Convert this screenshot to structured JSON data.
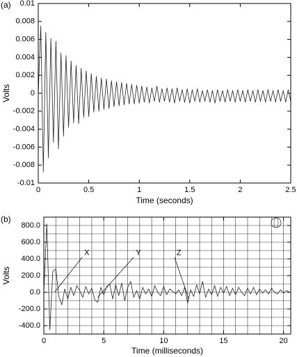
{
  "chart_data": [
    {
      "type": "line",
      "panel_label": "(a)",
      "ylabel": "Volts",
      "xlabel": "Time (seconds)",
      "xlim": [
        0,
        2.5
      ],
      "ylim": [
        -0.01,
        0.01
      ],
      "xticks": [
        0,
        0.5,
        1,
        1.5,
        2,
        2.5
      ],
      "yticks": [
        0.01,
        0.008,
        0.006,
        0.004,
        0.002,
        0,
        -0.002,
        -0.004,
        -0.006,
        -0.008,
        -0.01
      ],
      "grid": false,
      "series": [
        {
          "color": "#222222",
          "x": [
            0,
            0.025,
            0.05,
            0.075,
            0.1,
            0.125,
            0.15,
            0.175,
            0.2,
            0.225,
            0.25,
            0.275,
            0.3,
            0.325,
            0.35,
            0.375,
            0.4,
            0.425,
            0.45,
            0.475,
            0.5,
            0.525,
            0.55,
            0.575,
            0.6,
            0.625,
            0.65,
            0.675,
            0.7,
            0.725,
            0.75,
            0.775,
            0.8,
            0.825,
            0.85,
            0.875,
            0.9,
            0.925,
            0.95,
            0.975,
            1.0,
            1.025,
            1.05,
            1.075,
            1.1,
            1.125,
            1.15,
            1.175,
            1.2,
            1.225,
            1.25,
            1.275,
            1.3,
            1.325,
            1.35,
            1.375,
            1.4,
            1.425,
            1.45,
            1.475,
            1.5,
            1.525,
            1.55,
            1.575,
            1.6,
            1.625,
            1.65,
            1.675,
            1.7,
            1.725,
            1.75,
            1.775,
            1.8,
            1.825,
            1.85,
            1.875,
            1.9,
            1.925,
            1.95,
            1.975,
            2.0,
            2.025,
            2.05,
            2.075,
            2.1,
            2.125,
            2.15,
            2.175,
            2.2,
            2.225,
            2.25,
            2.275,
            2.3,
            2.325,
            2.35,
            2.375,
            2.4,
            2.425,
            2.45,
            2.475,
            2.5
          ],
          "values": [
            0,
            0.0075,
            -0.0088,
            0.0068,
            -0.0072,
            0.0061,
            -0.0055,
            0.0058,
            -0.0062,
            0.0045,
            -0.0048,
            0.0042,
            -0.0038,
            0.0036,
            -0.0033,
            0.0031,
            -0.0034,
            0.0028,
            -0.0027,
            0.0025,
            -0.0026,
            0.0022,
            -0.0021,
            0.0019,
            -0.002,
            0.0017,
            -0.0018,
            0.0016,
            -0.0017,
            0.0014,
            -0.0015,
            0.0013,
            -0.0014,
            0.0012,
            -0.0013,
            0.0011,
            -0.0012,
            0.001,
            -0.0012,
            0.0009,
            -0.0011,
            0.0008,
            -0.001,
            0.0007,
            -0.0011,
            0.0006,
            -0.0009,
            0.0008,
            -0.001,
            0.0005,
            -0.0009,
            0.0006,
            -0.001,
            0.0005,
            -0.0011,
            0.0006,
            -0.0009,
            0.0004,
            -0.001,
            0.0005,
            -0.0011,
            0.0004,
            -0.0009,
            0.0005,
            -0.001,
            0.0003,
            -0.0009,
            0.0004,
            -0.001,
            0.0003,
            -0.0011,
            0.0004,
            -0.0009,
            0.0003,
            -0.001,
            0.0004,
            -0.0009,
            0.0003,
            -0.001,
            0.0004,
            -0.0009,
            0.0003,
            -0.001,
            0.0004,
            -0.0009,
            0.0003,
            -0.001,
            0.0004,
            -0.0009,
            0.0003,
            -0.001,
            0.0004,
            -0.0009,
            0.0003,
            -0.001,
            0.0004,
            -0.0009,
            0.0003,
            -0.001,
            0.0004,
            -0.0009
          ]
        }
      ]
    },
    {
      "type": "line",
      "panel_label": "(b)",
      "ylabel": "Volts",
      "xlabel": "Time (milliseconds)",
      "xlim": [
        0,
        20.6
      ],
      "ylim": [
        -500,
        900
      ],
      "xticks": [
        0,
        5,
        10,
        15,
        20
      ],
      "yticks": [
        {
          "value": 800,
          "label": "800.0"
        },
        {
          "value": 600,
          "label": "600.0"
        },
        {
          "value": 400,
          "label": "400.0"
        },
        {
          "value": 200,
          "label": "200.0"
        },
        {
          "value": 0,
          "label": "0.0"
        },
        {
          "value": -200,
          "label": "-200.0"
        },
        {
          "value": -400,
          "label": "-400.0"
        }
      ],
      "grid": true,
      "xgrid": [
        1,
        2,
        3,
        4,
        5,
        6,
        7,
        8,
        9,
        10,
        11,
        12,
        13,
        14,
        15,
        16,
        17,
        18,
        19,
        20
      ],
      "ygrid": [
        -400,
        -300,
        -200,
        -100,
        0,
        100,
        200,
        300,
        400,
        500,
        600,
        700,
        800
      ],
      "annotations": [
        {
          "text": "X",
          "x": 3.2,
          "y": 470,
          "target_x": 0.9,
          "target_y": 0
        },
        {
          "text": "Y",
          "x": 7.5,
          "y": 470,
          "target_x": 4.5,
          "target_y": -60
        },
        {
          "text": "Z",
          "x": 10.9,
          "y": 470,
          "target_x": 12.1,
          "target_y": -80
        }
      ],
      "series": [
        {
          "color": "#222222",
          "x": [
            0,
            0.25,
            0.5,
            0.75,
            1,
            1.25,
            1.5,
            1.75,
            2,
            2.25,
            2.5,
            2.75,
            3,
            3.25,
            3.5,
            3.75,
            4,
            4.25,
            4.5,
            4.75,
            5,
            5.25,
            5.5,
            5.75,
            6,
            6.25,
            6.5,
            6.75,
            7,
            7.25,
            7.5,
            7.75,
            8,
            8.25,
            8.5,
            8.75,
            9,
            9.25,
            9.5,
            9.75,
            10,
            10.25,
            10.5,
            10.75,
            11,
            11.25,
            11.5,
            11.75,
            12,
            12.25,
            12.5,
            12.75,
            13,
            13.25,
            13.5,
            13.75,
            14,
            14.25,
            14.5,
            14.75,
            15,
            15.25,
            15.5,
            15.75,
            16,
            16.25,
            16.5,
            16.75,
            17,
            17.25,
            17.5,
            17.75,
            18,
            18.25,
            18.5,
            18.75,
            19,
            19.25,
            19.5,
            19.75,
            20,
            20.25,
            20.5
          ],
          "values": [
            0,
            820,
            -450,
            250,
            280,
            -50,
            -150,
            40,
            -80,
            60,
            -40,
            80,
            20,
            -60,
            70,
            -20,
            50,
            -90,
            -120,
            60,
            -30,
            70,
            100,
            -80,
            90,
            -40,
            110,
            -100,
            60,
            130,
            -60,
            20,
            -80,
            60,
            -20,
            40,
            -50,
            80,
            0,
            -40,
            70,
            -30,
            40,
            10,
            -20,
            30,
            -40,
            60,
            -130,
            30,
            -50,
            90,
            -20,
            130,
            -60,
            40,
            -30,
            80,
            -50,
            60,
            -10,
            70,
            -40,
            50,
            -30,
            60,
            0,
            -40,
            50,
            -20,
            60,
            -30,
            40,
            -10,
            30,
            -20,
            50,
            0,
            -20,
            30,
            -10,
            20,
            0
          ]
        }
      ]
    }
  ]
}
